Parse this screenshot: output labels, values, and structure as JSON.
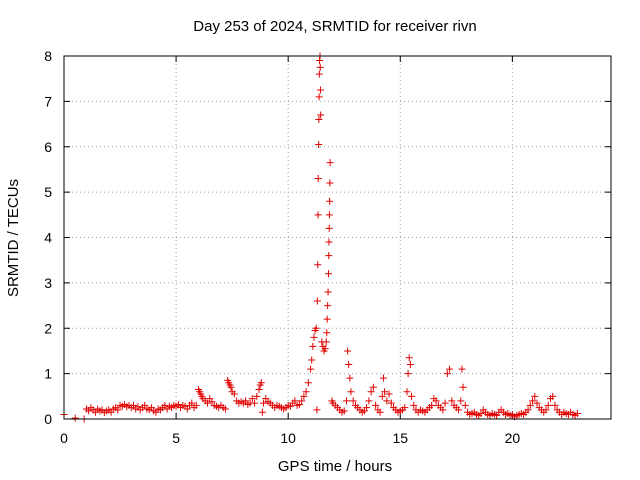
{
  "chart_data": {
    "type": "scatter",
    "title": "Day 253 of 2024, SRMTID for receiver rivn",
    "xlabel": "GPS time / hours",
    "ylabel": "SRMTID / TECUs",
    "xlim": [
      0,
      24.4
    ],
    "ylim": [
      0,
      8
    ],
    "xticks": [
      0,
      5,
      10,
      15,
      20
    ],
    "yticks": [
      0,
      1,
      2,
      3,
      4,
      5,
      6,
      7,
      8
    ],
    "grid": true,
    "marker": "plus",
    "color": "#e00000",
    "series": [
      {
        "name": "rivn",
        "points": [
          [
            0.0,
            0.1
          ],
          [
            0.5,
            0.02
          ],
          [
            0.9,
            0.0
          ],
          [
            1.0,
            0.22
          ],
          [
            1.1,
            0.18
          ],
          [
            1.2,
            0.25
          ],
          [
            1.3,
            0.2
          ],
          [
            1.4,
            0.15
          ],
          [
            1.5,
            0.22
          ],
          [
            1.6,
            0.18
          ],
          [
            1.7,
            0.2
          ],
          [
            1.8,
            0.14
          ],
          [
            1.9,
            0.18
          ],
          [
            2.0,
            0.2
          ],
          [
            2.1,
            0.15
          ],
          [
            2.2,
            0.22
          ],
          [
            2.3,
            0.25
          ],
          [
            2.4,
            0.2
          ],
          [
            2.5,
            0.3
          ],
          [
            2.6,
            0.28
          ],
          [
            2.7,
            0.32
          ],
          [
            2.8,
            0.27
          ],
          [
            2.9,
            0.3
          ],
          [
            3.0,
            0.25
          ],
          [
            3.1,
            0.3
          ],
          [
            3.2,
            0.22
          ],
          [
            3.3,
            0.27
          ],
          [
            3.4,
            0.2
          ],
          [
            3.5,
            0.25
          ],
          [
            3.6,
            0.3
          ],
          [
            3.7,
            0.22
          ],
          [
            3.8,
            0.2
          ],
          [
            3.9,
            0.25
          ],
          [
            4.0,
            0.18
          ],
          [
            4.1,
            0.15
          ],
          [
            4.2,
            0.22
          ],
          [
            4.3,
            0.2
          ],
          [
            4.4,
            0.25
          ],
          [
            4.5,
            0.3
          ],
          [
            4.6,
            0.22
          ],
          [
            4.7,
            0.28
          ],
          [
            4.8,
            0.25
          ],
          [
            4.9,
            0.3
          ],
          [
            5.0,
            0.28
          ],
          [
            5.1,
            0.32
          ],
          [
            5.2,
            0.25
          ],
          [
            5.3,
            0.3
          ],
          [
            5.4,
            0.28
          ],
          [
            5.5,
            0.22
          ],
          [
            5.6,
            0.3
          ],
          [
            5.7,
            0.35
          ],
          [
            5.8,
            0.25
          ],
          [
            5.9,
            0.3
          ],
          [
            6.0,
            0.65
          ],
          [
            6.05,
            0.6
          ],
          [
            6.1,
            0.55
          ],
          [
            6.15,
            0.5
          ],
          [
            6.2,
            0.45
          ],
          [
            6.3,
            0.4
          ],
          [
            6.4,
            0.35
          ],
          [
            6.5,
            0.45
          ],
          [
            6.6,
            0.38
          ],
          [
            6.7,
            0.3
          ],
          [
            6.8,
            0.28
          ],
          [
            6.9,
            0.25
          ],
          [
            7.0,
            0.3
          ],
          [
            7.1,
            0.25
          ],
          [
            7.2,
            0.22
          ],
          [
            7.3,
            0.85
          ],
          [
            7.35,
            0.8
          ],
          [
            7.4,
            0.75
          ],
          [
            7.45,
            0.7
          ],
          [
            7.5,
            0.6
          ],
          [
            7.6,
            0.55
          ],
          [
            7.7,
            0.4
          ],
          [
            7.8,
            0.35
          ],
          [
            7.9,
            0.38
          ],
          [
            8.0,
            0.35
          ],
          [
            8.1,
            0.4
          ],
          [
            8.2,
            0.32
          ],
          [
            8.3,
            0.35
          ],
          [
            8.4,
            0.45
          ],
          [
            8.5,
            0.35
          ],
          [
            8.6,
            0.5
          ],
          [
            8.7,
            0.65
          ],
          [
            8.75,
            0.75
          ],
          [
            8.8,
            0.8
          ],
          [
            8.85,
            0.15
          ],
          [
            8.9,
            0.35
          ],
          [
            9.0,
            0.45
          ],
          [
            9.1,
            0.38
          ],
          [
            9.2,
            0.35
          ],
          [
            9.3,
            0.3
          ],
          [
            9.4,
            0.25
          ],
          [
            9.5,
            0.3
          ],
          [
            9.6,
            0.28
          ],
          [
            9.7,
            0.25
          ],
          [
            9.8,
            0.22
          ],
          [
            9.9,
            0.25
          ],
          [
            10.0,
            0.3
          ],
          [
            10.1,
            0.28
          ],
          [
            10.2,
            0.35
          ],
          [
            10.3,
            0.4
          ],
          [
            10.4,
            0.3
          ],
          [
            10.5,
            0.32
          ],
          [
            10.6,
            0.4
          ],
          [
            10.7,
            0.5
          ],
          [
            10.8,
            0.6
          ],
          [
            10.9,
            0.8
          ],
          [
            11.0,
            1.1
          ],
          [
            11.05,
            1.3
          ],
          [
            11.1,
            1.6
          ],
          [
            11.15,
            1.8
          ],
          [
            11.2,
            1.95
          ],
          [
            11.25,
            2.0
          ],
          [
            11.28,
            0.2
          ],
          [
            11.3,
            2.6
          ],
          [
            11.32,
            3.4
          ],
          [
            11.33,
            4.5
          ],
          [
            11.34,
            5.3
          ],
          [
            11.36,
            6.05
          ],
          [
            11.37,
            6.6
          ],
          [
            11.38,
            7.1
          ],
          [
            11.39,
            7.6
          ],
          [
            11.4,
            7.9
          ],
          [
            11.42,
            8.0
          ],
          [
            11.43,
            7.75
          ],
          [
            11.44,
            7.25
          ],
          [
            11.45,
            6.7
          ],
          [
            11.5,
            1.7
          ],
          [
            11.55,
            1.6
          ],
          [
            11.6,
            1.5
          ],
          [
            11.65,
            1.55
          ],
          [
            11.7,
            1.7
          ],
          [
            11.72,
            1.9
          ],
          [
            11.74,
            2.2
          ],
          [
            11.76,
            2.5
          ],
          [
            11.78,
            2.8
          ],
          [
            11.8,
            3.2
          ],
          [
            11.81,
            3.6
          ],
          [
            11.82,
            3.9
          ],
          [
            11.83,
            4.2
          ],
          [
            11.84,
            4.5
          ],
          [
            11.85,
            4.8
          ],
          [
            11.86,
            5.2
          ],
          [
            11.87,
            5.65
          ],
          [
            11.95,
            0.4
          ],
          [
            12.0,
            0.35
          ],
          [
            12.1,
            0.3
          ],
          [
            12.2,
            0.25
          ],
          [
            12.3,
            0.2
          ],
          [
            12.4,
            0.15
          ],
          [
            12.5,
            0.18
          ],
          [
            12.6,
            0.4
          ],
          [
            12.65,
            1.5
          ],
          [
            12.7,
            1.2
          ],
          [
            12.75,
            0.9
          ],
          [
            12.8,
            0.6
          ],
          [
            12.9,
            0.4
          ],
          [
            13.0,
            0.3
          ],
          [
            13.1,
            0.25
          ],
          [
            13.2,
            0.2
          ],
          [
            13.3,
            0.15
          ],
          [
            13.4,
            0.18
          ],
          [
            13.5,
            0.25
          ],
          [
            13.6,
            0.4
          ],
          [
            13.7,
            0.6
          ],
          [
            13.8,
            0.7
          ],
          [
            13.9,
            0.3
          ],
          [
            14.0,
            0.2
          ],
          [
            14.1,
            0.15
          ],
          [
            14.2,
            0.5
          ],
          [
            14.25,
            0.9
          ],
          [
            14.3,
            0.6
          ],
          [
            14.4,
            0.4
          ],
          [
            14.5,
            0.55
          ],
          [
            14.6,
            0.35
          ],
          [
            14.7,
            0.25
          ],
          [
            14.8,
            0.2
          ],
          [
            14.9,
            0.15
          ],
          [
            15.0,
            0.18
          ],
          [
            15.1,
            0.2
          ],
          [
            15.2,
            0.25
          ],
          [
            15.3,
            0.6
          ],
          [
            15.35,
            1.0
          ],
          [
            15.4,
            1.35
          ],
          [
            15.45,
            1.2
          ],
          [
            15.5,
            0.5
          ],
          [
            15.6,
            0.3
          ],
          [
            15.7,
            0.2
          ],
          [
            15.8,
            0.15
          ],
          [
            15.9,
            0.2
          ],
          [
            16.0,
            0.18
          ],
          [
            16.1,
            0.15
          ],
          [
            16.2,
            0.2
          ],
          [
            16.3,
            0.25
          ],
          [
            16.4,
            0.3
          ],
          [
            16.5,
            0.45
          ],
          [
            16.6,
            0.4
          ],
          [
            16.7,
            0.3
          ],
          [
            16.8,
            0.25
          ],
          [
            16.9,
            0.2
          ],
          [
            17.0,
            0.35
          ],
          [
            17.1,
            1.0
          ],
          [
            17.2,
            1.1
          ],
          [
            17.3,
            0.4
          ],
          [
            17.4,
            0.3
          ],
          [
            17.5,
            0.25
          ],
          [
            17.6,
            0.2
          ],
          [
            17.7,
            0.4
          ],
          [
            17.75,
            1.1
          ],
          [
            17.8,
            0.7
          ],
          [
            17.9,
            0.3
          ],
          [
            18.0,
            0.15
          ],
          [
            18.1,
            0.1
          ],
          [
            18.2,
            0.12
          ],
          [
            18.3,
            0.15
          ],
          [
            18.4,
            0.1
          ],
          [
            18.5,
            0.08
          ],
          [
            18.6,
            0.12
          ],
          [
            18.7,
            0.2
          ],
          [
            18.8,
            0.15
          ],
          [
            18.9,
            0.1
          ],
          [
            19.0,
            0.08
          ],
          [
            19.1,
            0.12
          ],
          [
            19.2,
            0.1
          ],
          [
            19.3,
            0.08
          ],
          [
            19.4,
            0.15
          ],
          [
            19.5,
            0.2
          ],
          [
            19.6,
            0.15
          ],
          [
            19.7,
            0.1
          ],
          [
            19.8,
            0.12
          ],
          [
            19.9,
            0.08
          ],
          [
            20.0,
            0.1
          ],
          [
            20.1,
            0.05
          ],
          [
            20.2,
            0.08
          ],
          [
            20.3,
            0.1
          ],
          [
            20.4,
            0.12
          ],
          [
            20.5,
            0.1
          ],
          [
            20.6,
            0.15
          ],
          [
            20.7,
            0.2
          ],
          [
            20.8,
            0.3
          ],
          [
            20.9,
            0.4
          ],
          [
            21.0,
            0.5
          ],
          [
            21.1,
            0.35
          ],
          [
            21.2,
            0.25
          ],
          [
            21.3,
            0.2
          ],
          [
            21.4,
            0.15
          ],
          [
            21.5,
            0.2
          ],
          [
            21.6,
            0.3
          ],
          [
            21.7,
            0.45
          ],
          [
            21.8,
            0.5
          ],
          [
            21.9,
            0.3
          ],
          [
            22.0,
            0.2
          ],
          [
            22.1,
            0.15
          ],
          [
            22.2,
            0.1
          ],
          [
            22.3,
            0.15
          ],
          [
            22.4,
            0.12
          ],
          [
            22.5,
            0.1
          ],
          [
            22.6,
            0.15
          ],
          [
            22.7,
            0.1
          ],
          [
            22.8,
            0.08
          ],
          [
            22.9,
            0.12
          ]
        ]
      }
    ]
  }
}
